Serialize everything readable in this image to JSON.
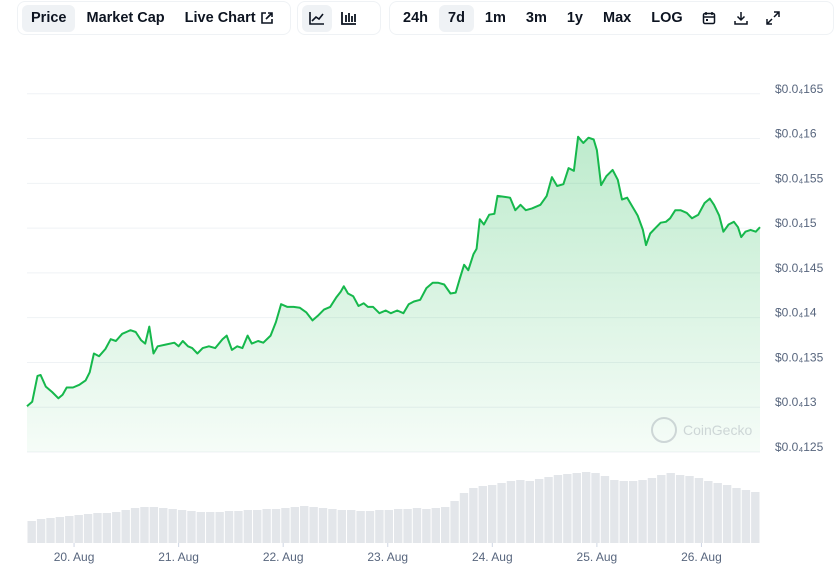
{
  "toolbar": {
    "views": [
      "Price",
      "Market Cap",
      "Live Chart"
    ],
    "ranges": [
      "24h",
      "7d",
      "1m",
      "3m",
      "1y",
      "Max",
      "LOG"
    ]
  },
  "chart_data": [
    {
      "type": "line",
      "watermark": "CoinGecko",
      "x": [
        19.55,
        19.6,
        19.65,
        19.68,
        19.73,
        19.79,
        19.85,
        19.89,
        19.93,
        19.99,
        20.05,
        20.11,
        20.15,
        20.19,
        20.24,
        20.3,
        20.35,
        20.4,
        20.46,
        20.54,
        20.59,
        20.64,
        20.68,
        20.72,
        20.76,
        20.8,
        20.88,
        20.96,
        21.0,
        21.04,
        21.09,
        21.13,
        21.18,
        21.23,
        21.29,
        21.35,
        21.42,
        21.46,
        21.51,
        21.56,
        21.61,
        21.66,
        21.7,
        21.76,
        21.81,
        21.88,
        21.93,
        21.98,
        22.04,
        22.1,
        22.16,
        22.22,
        22.28,
        22.33,
        22.39,
        22.45,
        22.51,
        22.55,
        22.58,
        22.62,
        22.67,
        22.72,
        22.77,
        22.81,
        22.86,
        22.92,
        22.98,
        23.03,
        23.09,
        23.15,
        23.2,
        23.25,
        23.31,
        23.37,
        23.43,
        23.48,
        23.54,
        23.6,
        23.65,
        23.69,
        23.73,
        23.77,
        23.82,
        23.85,
        23.88,
        23.92,
        23.97,
        24.02,
        24.05,
        24.11,
        24.17,
        24.22,
        24.27,
        24.32,
        24.38,
        24.46,
        24.52,
        24.57,
        24.62,
        24.68,
        24.73,
        24.78,
        24.82,
        24.87,
        24.92,
        24.97,
        25.0,
        25.04,
        25.09,
        25.15,
        25.2,
        25.24,
        25.29,
        25.34,
        25.39,
        25.44,
        25.47,
        25.51,
        25.56,
        25.61,
        25.66,
        25.7,
        25.75,
        25.8,
        25.86,
        25.91,
        25.97,
        26.03,
        26.08,
        26.12,
        26.17,
        26.21,
        26.26,
        26.31,
        26.35,
        26.38,
        26.42,
        26.47,
        26.52,
        26.56
      ],
      "series": [
        {
          "name": "Price",
          "color": "#16b84c",
          "values": [
            1.301e-05,
            1.306e-05,
            1.335e-05,
            1.336e-05,
            1.323e-05,
            1.317e-05,
            1.31e-05,
            1.314e-05,
            1.322e-05,
            1.322e-05,
            1.325e-05,
            1.33e-05,
            1.339e-05,
            1.36e-05,
            1.357e-05,
            1.365e-05,
            1.376e-05,
            1.374e-05,
            1.382e-05,
            1.386e-05,
            1.384e-05,
            1.375e-05,
            1.371e-05,
            1.39e-05,
            1.36e-05,
            1.368e-05,
            1.37e-05,
            1.372e-05,
            1.368e-05,
            1.374e-05,
            1.368e-05,
            1.366e-05,
            1.36e-05,
            1.366e-05,
            1.368e-05,
            1.366e-05,
            1.376e-05,
            1.38e-05,
            1.364e-05,
            1.368e-05,
            1.366e-05,
            1.38e-05,
            1.371e-05,
            1.374e-05,
            1.372e-05,
            1.38e-05,
            1.395e-05,
            1.415e-05,
            1.412e-05,
            1.412e-05,
            1.411e-05,
            1.406e-05,
            1.397e-05,
            1.402e-05,
            1.409e-05,
            1.412e-05,
            1.423e-05,
            1.429e-05,
            1.435e-05,
            1.427e-05,
            1.424e-05,
            1.413e-05,
            1.416e-05,
            1.412e-05,
            1.412e-05,
            1.405e-05,
            1.408e-05,
            1.405e-05,
            1.408e-05,
            1.405e-05,
            1.415e-05,
            1.418e-05,
            1.42e-05,
            1.433e-05,
            1.439e-05,
            1.439e-05,
            1.437e-05,
            1.427e-05,
            1.428e-05,
            1.444e-05,
            1.459e-05,
            1.453e-05,
            1.471e-05,
            1.477e-05,
            1.51e-05,
            1.504e-05,
            1.515e-05,
            1.516e-05,
            1.536e-05,
            1.535e-05,
            1.534e-05,
            1.52e-05,
            1.526e-05,
            1.52e-05,
            1.522e-05,
            1.526e-05,
            1.536e-05,
            1.557e-05,
            1.547e-05,
            1.549e-05,
            1.567e-05,
            1.564e-05,
            1.602e-05,
            1.595e-05,
            1.601e-05,
            1.599e-05,
            1.587e-05,
            1.548e-05,
            1.558e-05,
            1.565e-05,
            1.554e-05,
            1.532e-05,
            1.534e-05,
            1.524e-05,
            1.514e-05,
            1.498e-05,
            1.481e-05,
            1.494e-05,
            1.5e-05,
            1.506e-05,
            1.507e-05,
            1.511e-05,
            1.52e-05,
            1.52e-05,
            1.517e-05,
            1.511e-05,
            1.515e-05,
            1.528e-05,
            1.533e-05,
            1.526e-05,
            1.514e-05,
            1.496e-05,
            1.504e-05,
            1.507e-05,
            1.501e-05,
            1.49e-05,
            1.496e-05,
            1.498e-05,
            1.496e-05,
            1.501e-05
          ]
        }
      ],
      "xlim": [
        19.55,
        26.56
      ],
      "xticks": [
        {
          "value": 20,
          "label": "20. Aug"
        },
        {
          "value": 21,
          "label": "21. Aug"
        },
        {
          "value": 22,
          "label": "22. Aug"
        },
        {
          "value": 23,
          "label": "23. Aug"
        },
        {
          "value": 24,
          "label": "24. Aug"
        },
        {
          "value": 25,
          "label": "25. Aug"
        },
        {
          "value": 26,
          "label": "26. Aug"
        }
      ],
      "ylim": [
        1.25e-05,
        1.7e-05
      ],
      "yticks": [
        {
          "value": 1.25e-05,
          "label": "$0.0₄125"
        },
        {
          "value": 1.3e-05,
          "label": "$0.0₄13"
        },
        {
          "value": 1.35e-05,
          "label": "$0.0₄135"
        },
        {
          "value": 1.4e-05,
          "label": "$0.0₄14"
        },
        {
          "value": 1.45e-05,
          "label": "$0.0₄145"
        },
        {
          "value": 1.5e-05,
          "label": "$0.0₄15"
        },
        {
          "value": 1.55e-05,
          "label": "$0.0₄155"
        },
        {
          "value": 1.6e-05,
          "label": "$0.0₄16"
        },
        {
          "value": 1.65e-05,
          "label": "$0.0₄165"
        }
      ],
      "grid": true
    },
    {
      "type": "bar",
      "color": "#e3e6ea",
      "ylim": [
        0,
        100
      ],
      "values": [
        22,
        24,
        25,
        26,
        27,
        28,
        29,
        30,
        30,
        31,
        33,
        35,
        36,
        36,
        35,
        34,
        33,
        32,
        31,
        31,
        31,
        32,
        32,
        33,
        33,
        34,
        34,
        35,
        36,
        37,
        36,
        35,
        34,
        33,
        33,
        32,
        32,
        33,
        33,
        34,
        34,
        35,
        34,
        35,
        36,
        42,
        50,
        55,
        57,
        58,
        60,
        62,
        63,
        62,
        64,
        66,
        68,
        69,
        70,
        71,
        70,
        67,
        63,
        62,
        62,
        63,
        65,
        68,
        70,
        68,
        67,
        65,
        62,
        60,
        58,
        55,
        53,
        51
      ]
    }
  ]
}
